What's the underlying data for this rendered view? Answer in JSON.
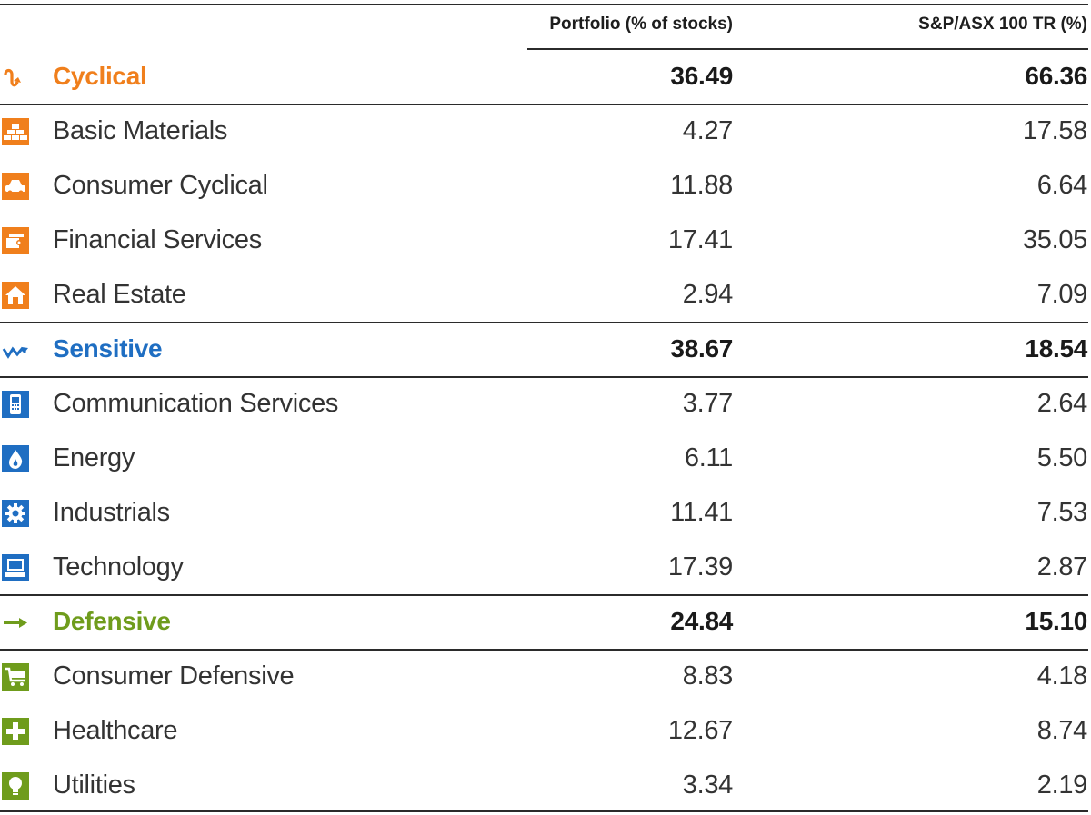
{
  "colors": {
    "cyclical": "#f07f1c",
    "sensitive": "#1f6ec2",
    "defensive": "#6f9c1c",
    "text": "#2b2b2b"
  },
  "headers": {
    "portfolio": "Portfolio (% of stocks)",
    "benchmark": "S&P/ASX 100 TR (%)"
  },
  "groups": [
    {
      "name": "Cyclical",
      "icon": "cyclical-icon",
      "portfolio": "36.49",
      "benchmark": "66.36",
      "items": [
        {
          "name": "Basic Materials",
          "icon": "basic-materials-icon",
          "portfolio": "4.27",
          "benchmark": "17.58"
        },
        {
          "name": "Consumer Cyclical",
          "icon": "car-icon",
          "portfolio": "11.88",
          "benchmark": "6.64"
        },
        {
          "name": "Financial Services",
          "icon": "financial-services-icon",
          "portfolio": "17.41",
          "benchmark": "35.05"
        },
        {
          "name": "Real Estate",
          "icon": "house-icon",
          "portfolio": "2.94",
          "benchmark": "7.09"
        }
      ]
    },
    {
      "name": "Sensitive",
      "icon": "sensitive-icon",
      "portfolio": "38.67",
      "benchmark": "18.54",
      "items": [
        {
          "name": "Communication Services",
          "icon": "phone-icon",
          "portfolio": "3.77",
          "benchmark": "2.64"
        },
        {
          "name": "Energy",
          "icon": "flame-icon",
          "portfolio": "6.11",
          "benchmark": "5.50"
        },
        {
          "name": "Industrials",
          "icon": "gear-icon",
          "portfolio": "11.41",
          "benchmark": "7.53"
        },
        {
          "name": "Technology",
          "icon": "computer-icon",
          "portfolio": "17.39",
          "benchmark": "2.87"
        }
      ]
    },
    {
      "name": "Defensive",
      "icon": "defensive-icon",
      "portfolio": "24.84",
      "benchmark": "15.10",
      "items": [
        {
          "name": "Consumer Defensive",
          "icon": "cart-icon",
          "portfolio": "8.83",
          "benchmark": "4.18"
        },
        {
          "name": "Healthcare",
          "icon": "cross-icon",
          "portfolio": "12.67",
          "benchmark": "8.74"
        },
        {
          "name": "Utilities",
          "icon": "lightbulb-icon",
          "portfolio": "3.34",
          "benchmark": "2.19"
        }
      ]
    }
  ]
}
